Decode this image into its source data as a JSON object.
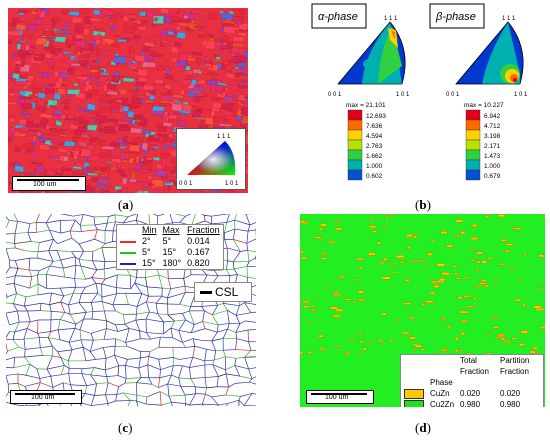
{
  "panel_a": {
    "caption": "a",
    "scale_bar": "100 um",
    "ipf_key": {
      "top": "1 1 1",
      "bottom_left": "0 0 1",
      "bottom_right": "1 0 1"
    }
  },
  "panel_b": {
    "caption": "b",
    "plots": [
      {
        "phase_label": "α-phase",
        "top": "1 1 1",
        "bottom_left": "0 0 1",
        "bottom_right": "1 0 1",
        "max_label": "max = 21.101",
        "scale_values": [
          "12.693",
          "7.636",
          "4.594",
          "2.763",
          "1.662",
          "1.000",
          "0.602"
        ]
      },
      {
        "phase_label": "β-phase",
        "top": "1 1 1",
        "bottom_left": "0 0 1",
        "bottom_right": "1 0 1",
        "max_label": "max = 10.227",
        "scale_values": [
          "6.942",
          "4.712",
          "3.198",
          "2.171",
          "1.473",
          "1.000",
          "0.679"
        ]
      }
    ],
    "scale_colors": [
      "#e0001a",
      "#ff6a00",
      "#ffd000",
      "#b8e000",
      "#30d040",
      "#00b0b0",
      "#0050d0"
    ]
  },
  "panel_c": {
    "caption": "c",
    "scale_bar": "100 um",
    "legend_headers": [
      "Min",
      "Max",
      "Fraction"
    ],
    "legend_rows": [
      {
        "color": "#ff2020",
        "min": "2°",
        "max": "5°",
        "fraction": "0.014"
      },
      {
        "color": "#20c020",
        "min": "5°",
        "max": "15°",
        "fraction": "0.167"
      },
      {
        "color": "#2020c0",
        "min": "15°",
        "max": "180°",
        "fraction": "0.820"
      }
    ],
    "csl_label": "CSL"
  },
  "panel_d": {
    "caption": "d",
    "scale_bar": "100 um",
    "legend_headers": [
      "Phase",
      "Total Fraction",
      "Partition Fraction"
    ],
    "legend_rows": [
      {
        "color": "#ffc800",
        "phase": "CuZn",
        "total": "0.020",
        "partition": "0.020"
      },
      {
        "color": "#20e020",
        "phase": "Cu2Zn",
        "total": "0.980",
        "partition": "0.980"
      }
    ]
  }
}
